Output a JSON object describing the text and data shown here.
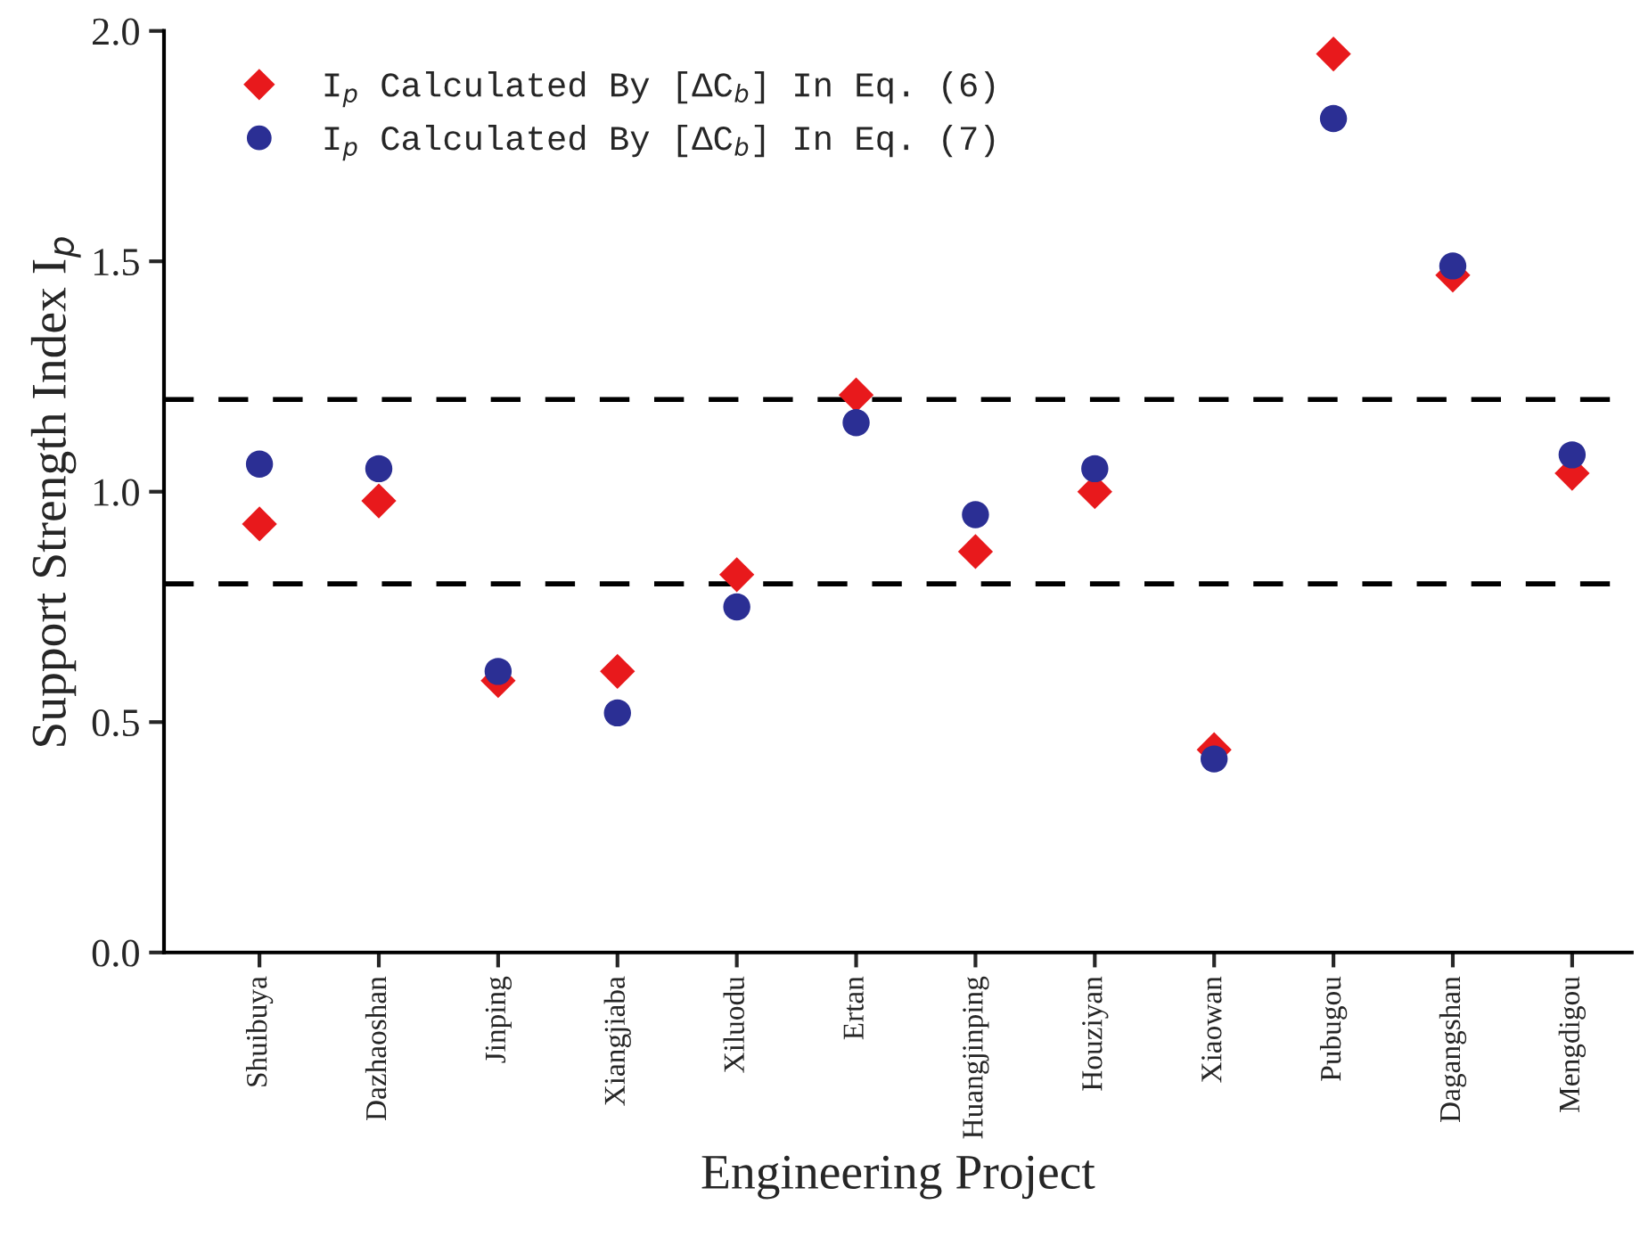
{
  "chart_data": {
    "type": "scatter",
    "xlabel": "Engineering Project",
    "ylabel": "Support Strength Index I$_{p}$",
    "categories": [
      "Shuibuya",
      "Dazhaoshan",
      "Jinping",
      "Xiangjiaba",
      "Xiluodu",
      "Ertan",
      "Huangjinping",
      "Houziyan",
      "Xiaowan",
      "Pubugou",
      "Dagangshan",
      "Mengdigou"
    ],
    "series": [
      {
        "name": "I$_{p}$ Calculated By [ΔC$_{b}$] In Eq. (6)",
        "color": "#e8191c",
        "marker": "diamond",
        "values": [
          0.93,
          0.98,
          0.59,
          0.61,
          0.82,
          1.21,
          0.87,
          1.0,
          0.44,
          1.95,
          1.47,
          1.04
        ]
      },
      {
        "name": "I$_{p}$ Calculated By [ΔC$_{b}$] In Eq. (7)",
        "color": "#2b2f94",
        "marker": "circle",
        "values": [
          1.06,
          1.05,
          0.61,
          0.52,
          0.75,
          1.15,
          0.95,
          1.05,
          0.42,
          1.81,
          1.49,
          1.08
        ]
      }
    ],
    "ylim": [
      0,
      2.0
    ],
    "yticks": [
      {
        "value": 0,
        "label": "0.0"
      },
      {
        "value": 0.5,
        "label": "0.5"
      },
      {
        "value": 1.0,
        "label": "1.0"
      },
      {
        "value": 1.5,
        "label": "1.5"
      },
      {
        "value": 2.0,
        "label": "2.0"
      }
    ],
    "ref_lines": [
      {
        "axis": "y",
        "value": 1.2,
        "color": "#000000",
        "line_style": "dashed"
      },
      {
        "axis": "y",
        "value": 0.8,
        "color": "#000000",
        "line_style": "dashed"
      }
    ],
    "grid": false,
    "legend": "top left"
  }
}
